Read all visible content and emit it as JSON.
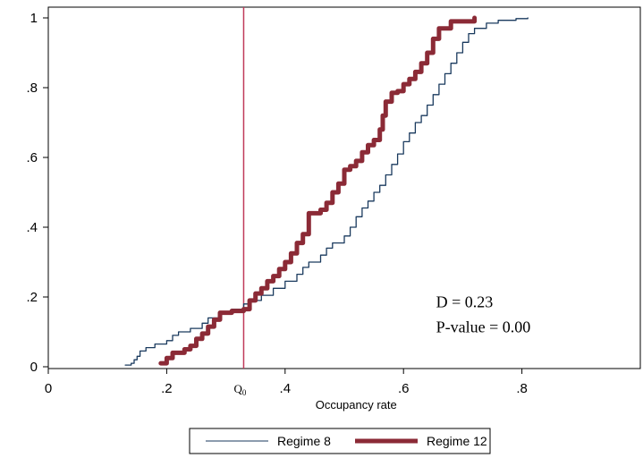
{
  "chart_data": {
    "type": "line",
    "title": "",
    "xlabel": "Occupancy rate",
    "ylabel": "",
    "xlim": [
      0,
      1.0
    ],
    "ylim": [
      0,
      1.0
    ],
    "x_ticks": [
      {
        "value": 0,
        "label": "0"
      },
      {
        "value": 0.2,
        "label": ".2"
      },
      {
        "value": 0.4,
        "label": ".4"
      },
      {
        "value": 0.6,
        "label": ".6"
      },
      {
        "value": 0.8,
        "label": ".8"
      }
    ],
    "y_ticks": [
      {
        "value": 0,
        "label": "0"
      },
      {
        "value": 0.2,
        "label": ".2"
      },
      {
        "value": 0.4,
        "label": ".4"
      },
      {
        "value": 0.6,
        "label": ".6"
      },
      {
        "value": 0.8,
        "label": ".8"
      },
      {
        "value": 1,
        "label": "1"
      }
    ],
    "grid": false,
    "legend_position": "bottom",
    "reference_line": {
      "x": 0.33,
      "label": "Q",
      "label_sub": "0",
      "color": "#c0395a"
    },
    "annotations": [
      "D = 0.23",
      "P-value = 0.00"
    ],
    "series": [
      {
        "name": "Regime 8",
        "color": "#1a3a5e",
        "points": [
          [
            0.13,
            0.005
          ],
          [
            0.14,
            0.01
          ],
          [
            0.145,
            0.02
          ],
          [
            0.15,
            0.03
          ],
          [
            0.155,
            0.045
          ],
          [
            0.165,
            0.055
          ],
          [
            0.18,
            0.065
          ],
          [
            0.2,
            0.075
          ],
          [
            0.21,
            0.09
          ],
          [
            0.22,
            0.1
          ],
          [
            0.24,
            0.11
          ],
          [
            0.26,
            0.125
          ],
          [
            0.27,
            0.14
          ],
          [
            0.29,
            0.155
          ],
          [
            0.31,
            0.165
          ],
          [
            0.33,
            0.18
          ],
          [
            0.34,
            0.19
          ],
          [
            0.36,
            0.205
          ],
          [
            0.38,
            0.225
          ],
          [
            0.4,
            0.245
          ],
          [
            0.42,
            0.265
          ],
          [
            0.43,
            0.285
          ],
          [
            0.44,
            0.3
          ],
          [
            0.46,
            0.32
          ],
          [
            0.47,
            0.34
          ],
          [
            0.48,
            0.355
          ],
          [
            0.5,
            0.375
          ],
          [
            0.51,
            0.4
          ],
          [
            0.52,
            0.43
          ],
          [
            0.53,
            0.455
          ],
          [
            0.54,
            0.475
          ],
          [
            0.55,
            0.5
          ],
          [
            0.56,
            0.52
          ],
          [
            0.57,
            0.55
          ],
          [
            0.58,
            0.58
          ],
          [
            0.59,
            0.61
          ],
          [
            0.6,
            0.645
          ],
          [
            0.61,
            0.67
          ],
          [
            0.62,
            0.7
          ],
          [
            0.63,
            0.72
          ],
          [
            0.64,
            0.75
          ],
          [
            0.65,
            0.78
          ],
          [
            0.66,
            0.81
          ],
          [
            0.67,
            0.84
          ],
          [
            0.68,
            0.87
          ],
          [
            0.69,
            0.9
          ],
          [
            0.7,
            0.93
          ],
          [
            0.71,
            0.955
          ],
          [
            0.72,
            0.97
          ],
          [
            0.74,
            0.985
          ],
          [
            0.76,
            0.993
          ],
          [
            0.79,
            0.998
          ],
          [
            0.81,
            1.0
          ]
        ]
      },
      {
        "name": "Regime 12",
        "color": "#8b2a36",
        "points": [
          [
            0.19,
            0.01
          ],
          [
            0.2,
            0.025
          ],
          [
            0.21,
            0.04
          ],
          [
            0.23,
            0.05
          ],
          [
            0.24,
            0.06
          ],
          [
            0.25,
            0.08
          ],
          [
            0.26,
            0.095
          ],
          [
            0.27,
            0.115
          ],
          [
            0.28,
            0.135
          ],
          [
            0.29,
            0.155
          ],
          [
            0.31,
            0.16
          ],
          [
            0.33,
            0.165
          ],
          [
            0.34,
            0.19
          ],
          [
            0.35,
            0.21
          ],
          [
            0.36,
            0.225
          ],
          [
            0.37,
            0.245
          ],
          [
            0.38,
            0.26
          ],
          [
            0.39,
            0.28
          ],
          [
            0.4,
            0.3
          ],
          [
            0.41,
            0.325
          ],
          [
            0.42,
            0.355
          ],
          [
            0.43,
            0.38
          ],
          [
            0.44,
            0.44
          ],
          [
            0.46,
            0.45
          ],
          [
            0.47,
            0.47
          ],
          [
            0.48,
            0.5
          ],
          [
            0.49,
            0.525
          ],
          [
            0.5,
            0.565
          ],
          [
            0.51,
            0.575
          ],
          [
            0.52,
            0.59
          ],
          [
            0.53,
            0.615
          ],
          [
            0.54,
            0.635
          ],
          [
            0.55,
            0.65
          ],
          [
            0.56,
            0.68
          ],
          [
            0.565,
            0.72
          ],
          [
            0.57,
            0.76
          ],
          [
            0.58,
            0.785
          ],
          [
            0.59,
            0.79
          ],
          [
            0.6,
            0.81
          ],
          [
            0.61,
            0.825
          ],
          [
            0.62,
            0.845
          ],
          [
            0.63,
            0.87
          ],
          [
            0.64,
            0.9
          ],
          [
            0.65,
            0.94
          ],
          [
            0.66,
            0.97
          ],
          [
            0.68,
            0.99
          ],
          [
            0.72,
            1.0
          ]
        ]
      }
    ]
  }
}
